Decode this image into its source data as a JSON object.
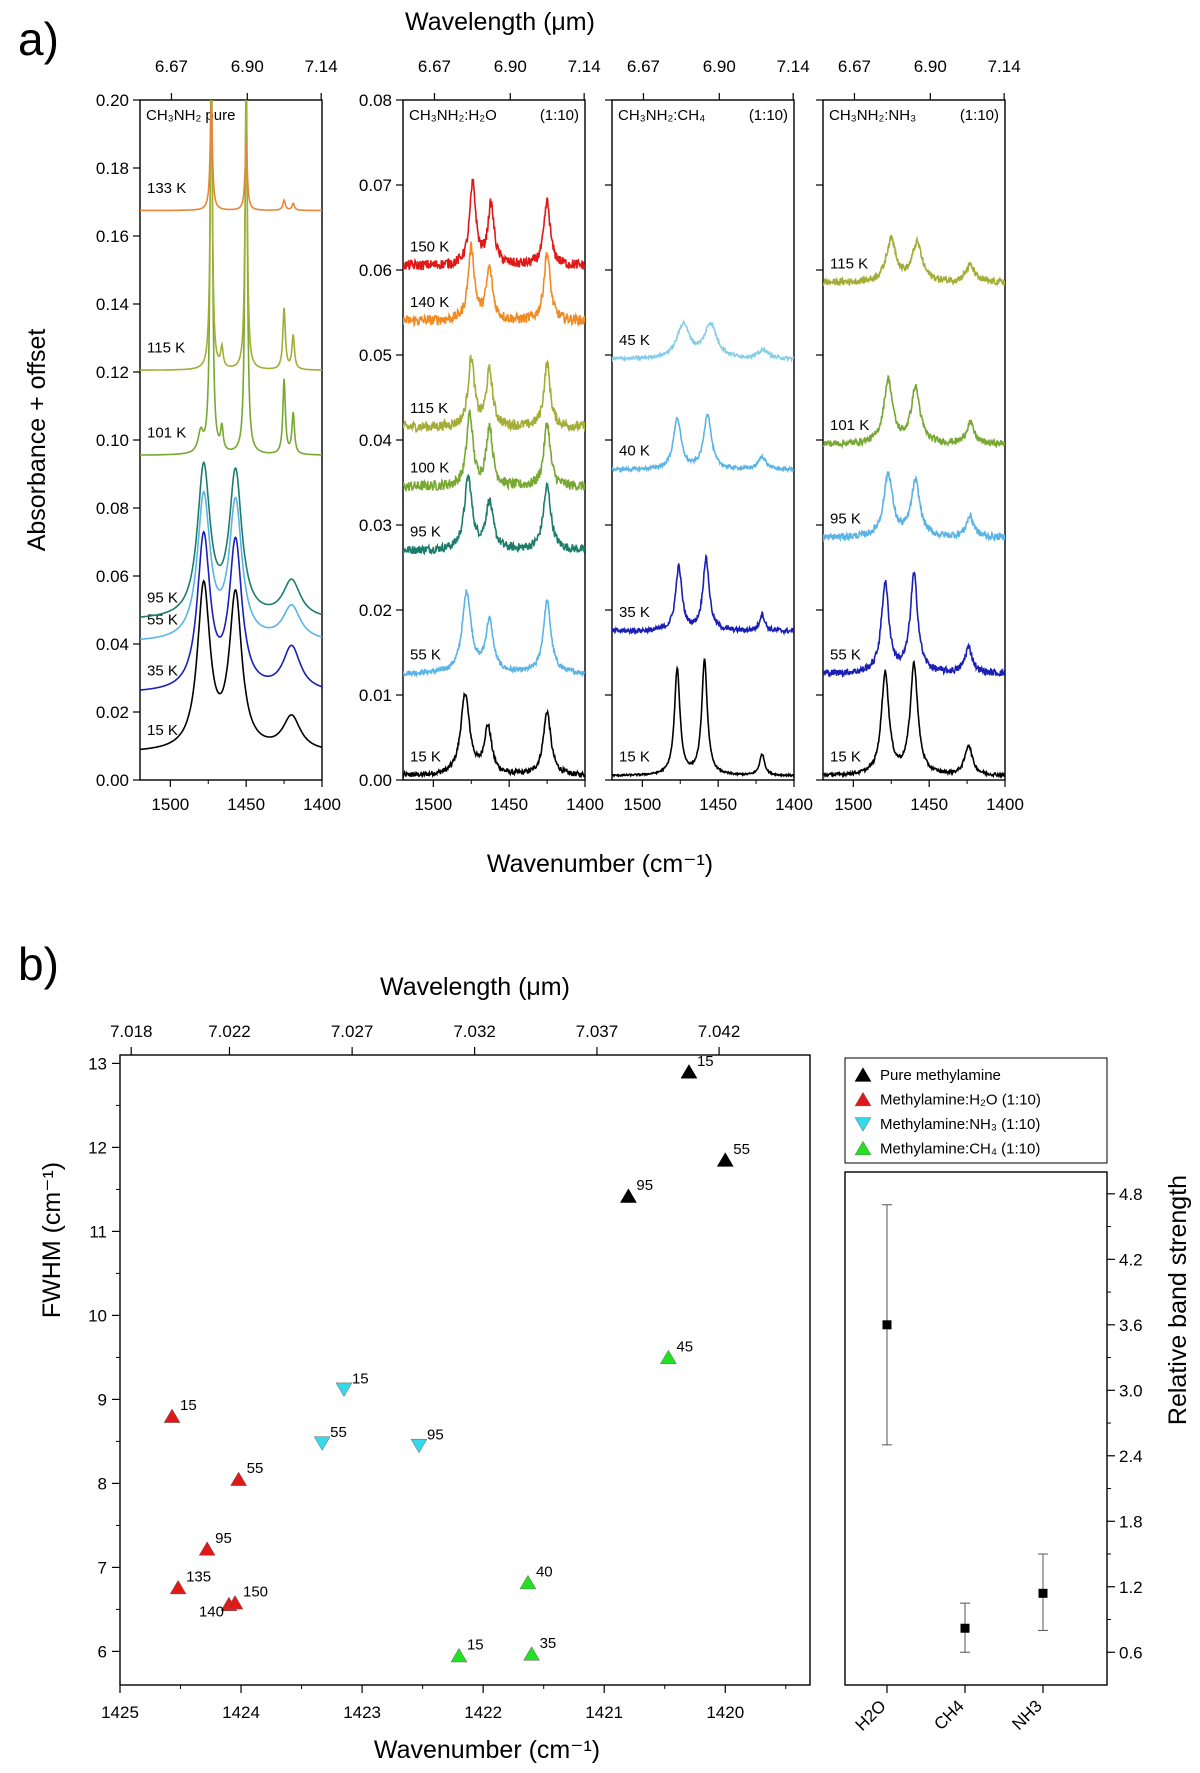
{
  "panel_a": {
    "label": "a)",
    "top_axis_title": "Wavelength (μm)",
    "bottom_axis_title": "Wavenumber (cm⁻¹)",
    "y_axis_title": "Absorbance + offset",
    "top_ticks": [
      "6.67",
      "6.90",
      "7.14"
    ],
    "bottom_ticks": [
      "1500",
      "1450",
      "1400"
    ],
    "frames": [
      {
        "title": "CH₃NH₂ pure",
        "ratio": "",
        "ylim": [
          0,
          0.2
        ],
        "yticks": [
          "0.00",
          "0.02",
          "0.04",
          "0.06",
          "0.08",
          "0.10",
          "0.12",
          "0.14",
          "0.16",
          "0.18",
          "0.20"
        ],
        "spectra": [
          {
            "label": "15 K",
            "color": "#000000",
            "offset": 0.008,
            "peaks": [
              [
                1478,
                5,
                0.048
              ],
              [
                1457,
                5,
                0.045
              ],
              [
                1420,
                7,
                0.01
              ]
            ],
            "noise": 0
          },
          {
            "label": "35 K",
            "color": "#1a1fb5",
            "offset": 0.0255,
            "peaks": [
              [
                1478,
                5,
                0.045
              ],
              [
                1457,
                5,
                0.043
              ],
              [
                1420,
                7,
                0.013
              ]
            ],
            "noise": 0
          },
          {
            "label": "55 K",
            "color": "#5ab4e5",
            "offset": 0.0405,
            "peaks": [
              [
                1478,
                5,
                0.042
              ],
              [
                1457,
                5,
                0.04
              ],
              [
                1420,
                7,
                0.01
              ]
            ],
            "noise": 0
          },
          {
            "label": "95 K",
            "color": "#1b7d6a",
            "offset": 0.047,
            "peaks": [
              [
                1478,
                5,
                0.044
              ],
              [
                1457,
                5,
                0.042
              ],
              [
                1420,
                7,
                0.011
              ]
            ],
            "noise": 0
          },
          {
            "label": "101 K",
            "color": "#77a832",
            "offset": 0.0955,
            "peaks": [
              [
                1473,
                0.9,
                0.125
              ],
              [
                1450,
                0.9,
                0.115
              ],
              [
                1466,
                1,
                0.007
              ],
              [
                1425,
                1,
                0.022
              ],
              [
                1419,
                1,
                0.012
              ],
              [
                1480,
                2,
                0.006
              ]
            ],
            "noise": 0
          },
          {
            "label": "115 K",
            "color": "#a4ad36",
            "offset": 0.1205,
            "peaks": [
              [
                1473,
                0.9,
                0.085
              ],
              [
                1450,
                0.9,
                0.08
              ],
              [
                1466,
                1,
                0.006
              ],
              [
                1425,
                1,
                0.018
              ],
              [
                1419,
                1,
                0.01
              ]
            ],
            "noise": 0
          },
          {
            "label": "133 K",
            "color": "#e5883a",
            "offset": 0.1675,
            "peaks": [
              [
                1473,
                0.9,
                0.032
              ],
              [
                1450,
                0.9,
                0.02
              ],
              [
                1425,
                1,
                0.003
              ],
              [
                1419,
                1,
                0.002
              ]
            ],
            "noise": 0
          }
        ]
      },
      {
        "title": "CH₃NH₂:H₂O",
        "ratio": "(1:10)",
        "ylim": [
          0,
          0.08
        ],
        "yticks": [
          "0.00",
          "0.01",
          "0.02",
          "0.03",
          "0.04",
          "0.05",
          "0.06",
          "0.07",
          "0.08"
        ],
        "spectra": [
          {
            "label": "15 K",
            "color": "#000000",
            "offset": 0.0005,
            "peaks": [
              [
                1479,
                3.5,
                0.0095
              ],
              [
                1464,
                3,
                0.0055
              ],
              [
                1425,
                3,
                0.0075
              ]
            ],
            "noise": 0.0003
          },
          {
            "label": "55 K",
            "color": "#5ab4e5",
            "offset": 0.0125,
            "peaks": [
              [
                1478,
                3.5,
                0.0095
              ],
              [
                1463,
                3,
                0.006
              ],
              [
                1425,
                3,
                0.0085
              ]
            ],
            "noise": 0.0003
          },
          {
            "label": "95 K",
            "color": "#1b7d6a",
            "offset": 0.027,
            "peaks": [
              [
                1477,
                3,
                0.0085
              ],
              [
                1463,
                3,
                0.0055
              ],
              [
                1425,
                3,
                0.0075
              ]
            ],
            "noise": 0.0005
          },
          {
            "label": "100 K",
            "color": "#77a832",
            "offset": 0.0345,
            "peaks": [
              [
                1476,
                2.5,
                0.0085
              ],
              [
                1463,
                2.5,
                0.007
              ],
              [
                1425,
                2.5,
                0.0075
              ]
            ],
            "noise": 0.0006
          },
          {
            "label": "115 K",
            "color": "#a4ad36",
            "offset": 0.0415,
            "peaks": [
              [
                1475,
                2.5,
                0.008
              ],
              [
                1463,
                2.5,
                0.0065
              ],
              [
                1425,
                2.5,
                0.0075
              ]
            ],
            "noise": 0.0006
          },
          {
            "label": "140 K",
            "color": "#f08b24",
            "offset": 0.054,
            "peaks": [
              [
                1475,
                2.5,
                0.0085
              ],
              [
                1463,
                2.5,
                0.006
              ],
              [
                1425,
                2.5,
                0.008
              ]
            ],
            "noise": 0.0006
          },
          {
            "label": "150 K",
            "color": "#e01818",
            "offset": 0.0605,
            "peaks": [
              [
                1474,
                2.5,
                0.0095
              ],
              [
                1462,
                2.5,
                0.007
              ],
              [
                1425,
                2.5,
                0.0075
              ]
            ],
            "noise": 0.0006
          }
        ]
      },
      {
        "title": "CH₃NH₂:CH₄",
        "ratio": "(1:10)",
        "ylim": [
          0,
          0.08
        ],
        "yticks": [],
        "spectra": [
          {
            "label": "15 K",
            "color": "#000000",
            "offset": 0.0005,
            "peaks": [
              [
                1477,
                2.2,
                0.0125
              ],
              [
                1459,
                2.2,
                0.0135
              ],
              [
                1421,
                2,
                0.0025
              ]
            ],
            "noise": 0.0001
          },
          {
            "label": "35 K",
            "color": "#1a1fb5",
            "offset": 0.0175,
            "peaks": [
              [
                1476,
                2.5,
                0.0075
              ],
              [
                1458,
                2.5,
                0.0085
              ],
              [
                1421,
                2,
                0.002
              ]
            ],
            "noise": 0.0003
          },
          {
            "label": "40 K",
            "color": "#5ab4e5",
            "offset": 0.0365,
            "peaks": [
              [
                1477,
                3,
                0.006
              ],
              [
                1457,
                3,
                0.0065
              ],
              [
                1421,
                3,
                0.0015
              ]
            ],
            "noise": 0.0002
          },
          {
            "label": "45 K",
            "color": "#87cde9",
            "offset": 0.0495,
            "peaks": [
              [
                1473,
                5,
                0.004
              ],
              [
                1455,
                5,
                0.004
              ],
              [
                1420,
                4,
                0.001
              ]
            ],
            "noise": 0.0002
          }
        ]
      },
      {
        "title": "CH₃NH₂:NH₃",
        "ratio": "(1:10)",
        "ylim": [
          0,
          0.08
        ],
        "yticks": [],
        "spectra": [
          {
            "label": "15 K",
            "color": "#000000",
            "offset": 0.0005,
            "peaks": [
              [
                1479,
                3,
                0.012
              ],
              [
                1460,
                3,
                0.013
              ],
              [
                1424,
                3,
                0.0035
              ]
            ],
            "noise": 0.0002
          },
          {
            "label": "55 K",
            "color": "#1a1fb5",
            "offset": 0.0125,
            "peaks": [
              [
                1479,
                3,
                0.0105
              ],
              [
                1460,
                3,
                0.0115
              ],
              [
                1424,
                3,
                0.003
              ]
            ],
            "noise": 0.0004
          },
          {
            "label": "95 K",
            "color": "#5ab4e5",
            "offset": 0.0285,
            "peaks": [
              [
                1477,
                3.5,
                0.0075
              ],
              [
                1459,
                3.5,
                0.0065
              ],
              [
                1423,
                3,
                0.0025
              ]
            ],
            "noise": 0.0004
          },
          {
            "label": "101 K",
            "color": "#77a832",
            "offset": 0.0395,
            "peaks": [
              [
                1477,
                3.5,
                0.0075
              ],
              [
                1459,
                3.5,
                0.0065
              ],
              [
                1423,
                3,
                0.0025
              ]
            ],
            "noise": 0.0004
          },
          {
            "label": "115 K",
            "color": "#a4ad36",
            "offset": 0.0585,
            "peaks": [
              [
                1475,
                4,
                0.005
              ],
              [
                1458,
                4,
                0.0045
              ],
              [
                1423,
                3.5,
                0.002
              ]
            ],
            "noise": 0.0004
          }
        ]
      }
    ]
  },
  "panel_b": {
    "label": "b)",
    "top_axis_title": "Wavelength (μm)",
    "bottom_axis_title": "Wavenumber (cm⁻¹)",
    "y_axis_title": "FWHM (cm⁻¹)",
    "right_axis_title": "Relative band strength",
    "top_ticks": [
      "7.018",
      "7.022",
      "7.027",
      "7.032",
      "7.037",
      "7.042"
    ],
    "legend": [
      {
        "label": "Pure methylamine",
        "color": "#000000",
        "marker": "triangle-up"
      },
      {
        "label": "Methylamine:H₂O (1:10)",
        "color": "#e01818",
        "marker": "triangle-up"
      },
      {
        "label": "Methylamine:NH₃ (1:10)",
        "color": "#36d8ea",
        "marker": "triangle-down"
      },
      {
        "label": "Methylamine:CH₄ (1:10)",
        "color": "#22e022",
        "marker": "triangle-up"
      }
    ]
  },
  "chart_data": [
    {
      "type": "line",
      "title": "CH₃NH₂ pure",
      "xlabel": "Wavenumber (cm⁻¹)",
      "ylabel": "Absorbance + offset",
      "x2label": "Wavelength (μm)",
      "xlim": [
        1520,
        1400
      ],
      "ylim": [
        0,
        0.2
      ],
      "xticks": [
        1500,
        1450,
        1400
      ],
      "series": [
        {
          "name": "15 K"
        },
        {
          "name": "35 K"
        },
        {
          "name": "55 K"
        },
        {
          "name": "95 K"
        },
        {
          "name": "101 K"
        },
        {
          "name": "115 K"
        },
        {
          "name": "133 K"
        }
      ]
    },
    {
      "type": "line",
      "title": "CH₃NH₂:H₂O (1:10)",
      "xlim": [
        1520,
        1400
      ],
      "ylim": [
        0,
        0.08
      ],
      "xticks": [
        1500,
        1450,
        1400
      ],
      "series": [
        {
          "name": "15 K"
        },
        {
          "name": "55 K"
        },
        {
          "name": "95 K"
        },
        {
          "name": "100 K"
        },
        {
          "name": "115 K"
        },
        {
          "name": "140 K"
        },
        {
          "name": "150 K"
        }
      ]
    },
    {
      "type": "line",
      "title": "CH₃NH₂:CH₄ (1:10)",
      "xlim": [
        1520,
        1400
      ],
      "ylim": [
        0,
        0.08
      ],
      "xticks": [
        1500,
        1450,
        1400
      ],
      "series": [
        {
          "name": "15 K"
        },
        {
          "name": "35 K"
        },
        {
          "name": "40 K"
        },
        {
          "name": "45 K"
        }
      ]
    },
    {
      "type": "line",
      "title": "CH₃NH₂:NH₃ (1:10)",
      "xlim": [
        1520,
        1400
      ],
      "ylim": [
        0,
        0.08
      ],
      "xticks": [
        1500,
        1450,
        1400
      ],
      "series": [
        {
          "name": "15 K"
        },
        {
          "name": "55 K"
        },
        {
          "name": "95 K"
        },
        {
          "name": "101 K"
        },
        {
          "name": "115 K"
        }
      ]
    },
    {
      "type": "scatter",
      "xlabel": "Wavenumber (cm⁻¹)",
      "ylabel": "FWHM (cm⁻¹)",
      "x2label": "Wavelength (μm)",
      "xlim": [
        1425,
        1419.3
      ],
      "ylim": [
        5.6,
        13.1
      ],
      "xticks": [
        1425,
        1424,
        1423,
        1422,
        1421,
        1420
      ],
      "yticks": [
        6,
        7,
        8,
        9,
        10,
        11,
        12,
        13
      ],
      "series": [
        {
          "name": "Pure methylamine",
          "color": "#000000",
          "marker": "triangle-up",
          "points": [
            {
              "x": 1420.3,
              "y": 12.9,
              "label": "15"
            },
            {
              "x": 1420.0,
              "y": 11.85,
              "label": "55"
            },
            {
              "x": 1420.8,
              "y": 11.42,
              "label": "95"
            }
          ]
        },
        {
          "name": "Methylamine:H₂O (1:10)",
          "color": "#e01818",
          "marker": "triangle-up",
          "points": [
            {
              "x": 1424.57,
              "y": 8.8,
              "label": "15"
            },
            {
              "x": 1424.02,
              "y": 8.05,
              "label": "55"
            },
            {
              "x": 1424.28,
              "y": 7.22,
              "label": "95"
            },
            {
              "x": 1424.52,
              "y": 6.76,
              "label": "135"
            },
            {
              "x": 1424.1,
              "y": 6.56,
              "label": "140"
            },
            {
              "x": 1424.05,
              "y": 6.58,
              "label": "150"
            }
          ]
        },
        {
          "name": "Methylamine:NH₃ (1:10)",
          "color": "#36d8ea",
          "marker": "triangle-down",
          "points": [
            {
              "x": 1423.15,
              "y": 9.12,
              "label": "15"
            },
            {
              "x": 1423.33,
              "y": 8.48,
              "label": "55"
            },
            {
              "x": 1422.53,
              "y": 8.45,
              "label": "95"
            }
          ]
        },
        {
          "name": "Methylamine:CH₄ (1:10)",
          "color": "#22e022",
          "marker": "triangle-up",
          "points": [
            {
              "x": 1422.2,
              "y": 5.95,
              "label": "15"
            },
            {
              "x": 1421.6,
              "y": 5.97,
              "label": "35"
            },
            {
              "x": 1421.63,
              "y": 6.82,
              "label": "40"
            },
            {
              "x": 1420.47,
              "y": 9.5,
              "label": "45"
            }
          ]
        }
      ]
    },
    {
      "type": "scatter",
      "ylabel": "Relative band strength",
      "categories": [
        "H2O",
        "CH4",
        "NH3"
      ],
      "ylim": [
        0.3,
        5.0
      ],
      "yticks": [
        0.6,
        1.2,
        1.8,
        2.4,
        3.0,
        3.6,
        4.2,
        4.8
      ],
      "points": [
        {
          "category": "H2O",
          "y": 3.6,
          "err_low": 2.5,
          "err_high": 4.7
        },
        {
          "category": "CH4",
          "y": 0.82,
          "err_low": 0.6,
          "err_high": 1.05
        },
        {
          "category": "NH3",
          "y": 1.14,
          "err_low": 0.8,
          "err_high": 1.5
        }
      ]
    }
  ]
}
